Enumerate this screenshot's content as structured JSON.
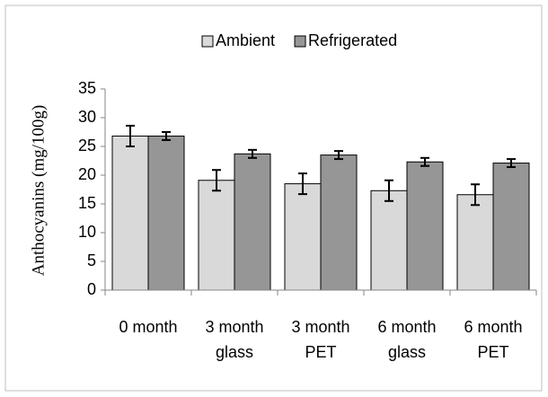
{
  "chart_data": {
    "type": "bar",
    "y_label": "Anthocyanins  (mg/100g)",
    "categories": [
      [
        "0 month"
      ],
      [
        "3 month",
        "glass"
      ],
      [
        "3 month",
        "PET"
      ],
      [
        "6 month",
        "glass"
      ],
      [
        "6 month",
        "PET"
      ]
    ],
    "series": [
      {
        "name": "Ambient",
        "color": "#d9d9d9",
        "values": [
          26.8,
          19.1,
          18.5,
          17.3,
          16.6
        ],
        "errors": [
          1.8,
          1.8,
          1.8,
          1.8,
          1.8
        ]
      },
      {
        "name": "Refrigerated",
        "color": "#969696",
        "values": [
          26.8,
          23.7,
          23.5,
          22.3,
          22.1
        ],
        "errors": [
          0.7,
          0.7,
          0.7,
          0.7,
          0.7
        ]
      }
    ],
    "ylim": [
      0,
      35
    ],
    "yticks": [
      0,
      5,
      10,
      15,
      20,
      25,
      30,
      35
    ],
    "grid": false,
    "legend": "top"
  }
}
